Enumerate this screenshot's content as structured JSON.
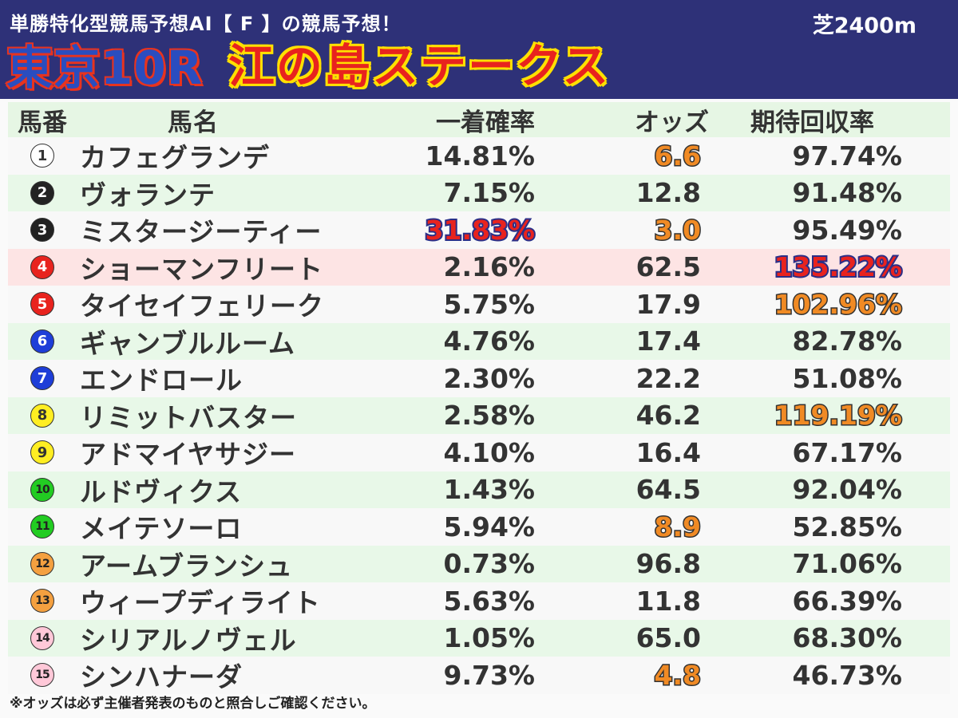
{
  "header": {
    "subtitle": "単勝特化型競馬予想AI【 F 】の競馬予想！",
    "distance": "芝2400m",
    "race_no": "東京10R",
    "race_name": "江の島ステークス"
  },
  "table": {
    "headers": {
      "num": "馬番",
      "name": "馬名",
      "prob": "一着確率",
      "odds": "オッズ",
      "ret": "期待回収率"
    },
    "rows": [
      {
        "num": "1",
        "name": "カフェグランデ",
        "prob": "14.81%",
        "odds": "6.6",
        "ret": "97.74%"
      },
      {
        "num": "2",
        "name": "ヴォランテ",
        "prob": "7.15%",
        "odds": "12.8",
        "ret": "91.48%"
      },
      {
        "num": "3",
        "name": "ミスタージーティー",
        "prob": "31.83%",
        "odds": "3.0",
        "ret": "95.49%"
      },
      {
        "num": "4",
        "name": "ショーマンフリート",
        "prob": "2.16%",
        "odds": "62.5",
        "ret": "135.22%"
      },
      {
        "num": "5",
        "name": "タイセイフェリーク",
        "prob": "5.75%",
        "odds": "17.9",
        "ret": "102.96%"
      },
      {
        "num": "6",
        "name": "ギャンブルルーム",
        "prob": "4.76%",
        "odds": "17.4",
        "ret": "82.78%"
      },
      {
        "num": "7",
        "name": "エンドロール",
        "prob": "2.30%",
        "odds": "22.2",
        "ret": "51.08%"
      },
      {
        "num": "8",
        "name": "リミットバスター",
        "prob": "2.58%",
        "odds": "46.2",
        "ret": "119.19%"
      },
      {
        "num": "9",
        "name": "アドマイヤサジー",
        "prob": "4.10%",
        "odds": "16.4",
        "ret": "67.17%"
      },
      {
        "num": "10",
        "name": "ルドヴィクス",
        "prob": "1.43%",
        "odds": "64.5",
        "ret": "92.04%"
      },
      {
        "num": "11",
        "name": "メイテソーロ",
        "prob": "5.94%",
        "odds": "8.9",
        "ret": "52.85%"
      },
      {
        "num": "12",
        "name": "アームブランシュ",
        "prob": "0.73%",
        "odds": "96.8",
        "ret": "71.06%"
      },
      {
        "num": "13",
        "name": "ウィープディライト",
        "prob": "5.63%",
        "odds": "11.8",
        "ret": "66.39%"
      },
      {
        "num": "14",
        "name": "シリアルノヴェル",
        "prob": "1.05%",
        "odds": "65.0",
        "ret": "68.30%"
      },
      {
        "num": "15",
        "name": "シンハナーダ",
        "prob": "9.73%",
        "odds": "4.8",
        "ret": "46.73%"
      }
    ],
    "gate_colors": {
      "1": {
        "bg": "#ffffff",
        "fg": "#333333"
      },
      "2": {
        "bg": "#222222",
        "fg": "#ffffff"
      },
      "3": {
        "bg": "#222222",
        "fg": "#ffffff"
      },
      "4": {
        "bg": "#e8231e",
        "fg": "#ffffff"
      },
      "5": {
        "bg": "#e8231e",
        "fg": "#ffffff"
      },
      "6": {
        "bg": "#1e3ed8",
        "fg": "#ffffff"
      },
      "7": {
        "bg": "#1e3ed8",
        "fg": "#ffffff"
      },
      "8": {
        "bg": "#ffee22",
        "fg": "#333333"
      },
      "9": {
        "bg": "#ffee22",
        "fg": "#333333"
      },
      "10": {
        "bg": "#22cc22",
        "fg": "#222222"
      },
      "11": {
        "bg": "#22cc22",
        "fg": "#222222"
      },
      "12": {
        "bg": "#f4a040",
        "fg": "#222222"
      },
      "13": {
        "bg": "#f4a040",
        "fg": "#222222"
      },
      "14": {
        "bg": "#ffc8d8",
        "fg": "#222222"
      },
      "15": {
        "bg": "#ffc8d8",
        "fg": "#222222"
      }
    },
    "emphasis": {
      "prob": {
        "3": "blue"
      },
      "odds": {
        "1": "orange",
        "3": "orange",
        "11": "orange",
        "15": "orange"
      },
      "ret": {
        "4": "blue",
        "5": "orange",
        "8": "orange"
      }
    },
    "highlight_row": "4"
  },
  "footnote": "※オッズは必ず主催者発表のものと照合しご確認ください。"
}
